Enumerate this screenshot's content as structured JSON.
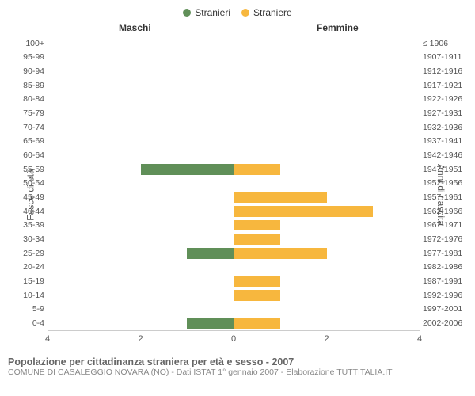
{
  "chart": {
    "type": "population-pyramid",
    "legend": [
      {
        "label": "Stranieri",
        "color": "#608f58"
      },
      {
        "label": "Straniere",
        "color": "#f7b73e"
      }
    ],
    "header_male": "Maschi",
    "header_female": "Femmine",
    "y_left_title": "Fasce di età",
    "y_right_title": "Anni di nascita",
    "colors": {
      "male": "#608f58",
      "female": "#f7b73e",
      "zero_line": "#666600",
      "axis": "#cccccc",
      "text": "#555555",
      "background": "#ffffff"
    },
    "x_axis": {
      "min": 0,
      "max": 4,
      "ticks": [
        4,
        2,
        0,
        2,
        4
      ],
      "tick_positions_pct": [
        0,
        25,
        50,
        75,
        100
      ]
    },
    "bar_font_size": 10.5,
    "rows": [
      {
        "age": "100+",
        "birth": "≤ 1906",
        "m": 0,
        "f": 0
      },
      {
        "age": "95-99",
        "birth": "1907-1911",
        "m": 0,
        "f": 0
      },
      {
        "age": "90-94",
        "birth": "1912-1916",
        "m": 0,
        "f": 0
      },
      {
        "age": "85-89",
        "birth": "1917-1921",
        "m": 0,
        "f": 0
      },
      {
        "age": "80-84",
        "birth": "1922-1926",
        "m": 0,
        "f": 0
      },
      {
        "age": "75-79",
        "birth": "1927-1931",
        "m": 0,
        "f": 0
      },
      {
        "age": "70-74",
        "birth": "1932-1936",
        "m": 0,
        "f": 0
      },
      {
        "age": "65-69",
        "birth": "1937-1941",
        "m": 0,
        "f": 0
      },
      {
        "age": "60-64",
        "birth": "1942-1946",
        "m": 0,
        "f": 0
      },
      {
        "age": "55-59",
        "birth": "1947-1951",
        "m": 2,
        "f": 1
      },
      {
        "age": "50-54",
        "birth": "1952-1956",
        "m": 0,
        "f": 0
      },
      {
        "age": "45-49",
        "birth": "1957-1961",
        "m": 0,
        "f": 2
      },
      {
        "age": "40-44",
        "birth": "1962-1966",
        "m": 0,
        "f": 3
      },
      {
        "age": "35-39",
        "birth": "1967-1971",
        "m": 0,
        "f": 1
      },
      {
        "age": "30-34",
        "birth": "1972-1976",
        "m": 0,
        "f": 1
      },
      {
        "age": "25-29",
        "birth": "1977-1981",
        "m": 1,
        "f": 2
      },
      {
        "age": "20-24",
        "birth": "1982-1986",
        "m": 0,
        "f": 0
      },
      {
        "age": "15-19",
        "birth": "1987-1991",
        "m": 0,
        "f": 1
      },
      {
        "age": "10-14",
        "birth": "1992-1996",
        "m": 0,
        "f": 1
      },
      {
        "age": "5-9",
        "birth": "1997-2001",
        "m": 0,
        "f": 0
      },
      {
        "age": "0-4",
        "birth": "2002-2006",
        "m": 1,
        "f": 1
      }
    ],
    "footer_title": "Popolazione per cittadinanza straniera per età e sesso - 2007",
    "footer_sub": "COMUNE DI CASALEGGIO NOVARA (NO) - Dati ISTAT 1° gennaio 2007 - Elaborazione TUTTITALIA.IT"
  }
}
